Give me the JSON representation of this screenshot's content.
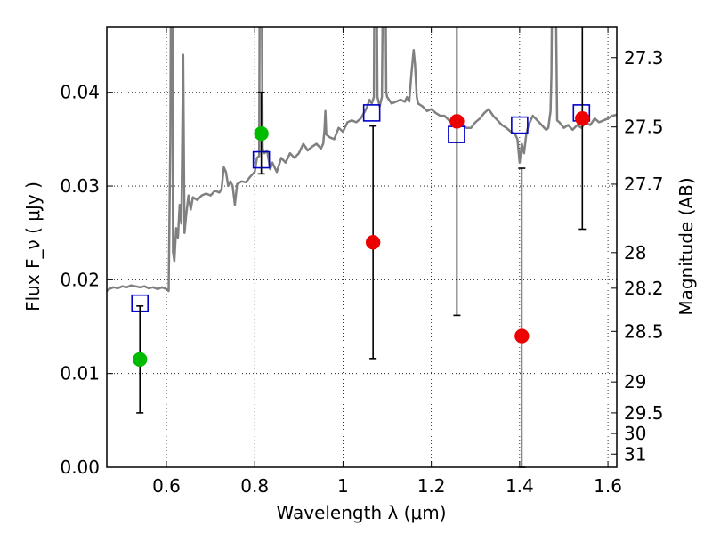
{
  "chart_data": {
    "type": "scatter",
    "xlabel": "Wavelength  λ (μm)",
    "ylabel": "Flux  F_ν  ( μJy )",
    "y2label": "Magnitude (AB)",
    "xlim": [
      0.465,
      1.62
    ],
    "ylim": [
      0.0,
      0.047
    ],
    "grid": true,
    "x_ticks": [
      0.6,
      0.8,
      1.0,
      1.2,
      1.4,
      1.6
    ],
    "x_tick_labels": [
      "0.6",
      "0.8",
      "1",
      "1.2",
      "1.4",
      "1.6"
    ],
    "y_ticks": [
      0.0,
      0.01,
      0.02,
      0.03,
      0.04
    ],
    "y_tick_labels": [
      "0.00",
      "0.01",
      "0.02",
      "0.03",
      "0.04"
    ],
    "y2_ticks": [
      {
        "label": "27.3",
        "flux": 0.0437
      },
      {
        "label": "27.5",
        "flux": 0.0363
      },
      {
        "label": "27.7",
        "flux": 0.0302
      },
      {
        "label": "28",
        "flux": 0.0229
      },
      {
        "label": "28.2",
        "flux": 0.0191
      },
      {
        "label": "28.5",
        "flux": 0.0145
      },
      {
        "label": "29",
        "flux": 0.0091
      },
      {
        "label": "29.5",
        "flux": 0.0058
      },
      {
        "label": "30",
        "flux": 0.0036
      },
      {
        "label": "31",
        "flux": 0.0014
      }
    ],
    "colors": {
      "spectrum": "#808080",
      "model_box": "#0000cc",
      "green_point": "#00bb00",
      "red_point": "#ee0000",
      "errorbar": "#000000"
    },
    "series": [
      {
        "name": "model-spectrum",
        "kind": "line",
        "points": [
          [
            0.465,
            0.0188
          ],
          [
            0.47,
            0.019
          ],
          [
            0.48,
            0.0192
          ],
          [
            0.49,
            0.0191
          ],
          [
            0.5,
            0.0193
          ],
          [
            0.51,
            0.0192
          ],
          [
            0.52,
            0.0194
          ],
          [
            0.53,
            0.0193
          ],
          [
            0.54,
            0.0192
          ],
          [
            0.55,
            0.0193
          ],
          [
            0.56,
            0.0191
          ],
          [
            0.57,
            0.0192
          ],
          [
            0.58,
            0.019
          ],
          [
            0.59,
            0.0192
          ],
          [
            0.6,
            0.019
          ],
          [
            0.605,
            0.0188
          ],
          [
            0.609,
            0.035
          ],
          [
            0.611,
            0.06
          ],
          [
            0.613,
            0.06
          ],
          [
            0.615,
            0.023
          ],
          [
            0.618,
            0.022
          ],
          [
            0.622,
            0.0255
          ],
          [
            0.626,
            0.0245
          ],
          [
            0.63,
            0.028
          ],
          [
            0.634,
            0.026
          ],
          [
            0.638,
            0.044
          ],
          [
            0.641,
            0.025
          ],
          [
            0.645,
            0.027
          ],
          [
            0.65,
            0.029
          ],
          [
            0.655,
            0.0275
          ],
          [
            0.66,
            0.0288
          ],
          [
            0.67,
            0.0285
          ],
          [
            0.68,
            0.029
          ],
          [
            0.69,
            0.0292
          ],
          [
            0.7,
            0.029
          ],
          [
            0.71,
            0.0295
          ],
          [
            0.72,
            0.0293
          ],
          [
            0.725,
            0.0297
          ],
          [
            0.73,
            0.032
          ],
          [
            0.735,
            0.0315
          ],
          [
            0.74,
            0.03
          ],
          [
            0.745,
            0.0305
          ],
          [
            0.75,
            0.03
          ],
          [
            0.755,
            0.028
          ],
          [
            0.76,
            0.0302
          ],
          [
            0.77,
            0.0305
          ],
          [
            0.78,
            0.0304
          ],
          [
            0.79,
            0.031
          ],
          [
            0.8,
            0.0315
          ],
          [
            0.805,
            0.033
          ],
          [
            0.81,
            0.0332
          ],
          [
            0.812,
            0.06
          ],
          [
            0.815,
            0.06
          ],
          [
            0.818,
            0.034
          ],
          [
            0.822,
            0.0335
          ],
          [
            0.828,
            0.0338
          ],
          [
            0.835,
            0.0318
          ],
          [
            0.84,
            0.0325
          ],
          [
            0.845,
            0.032
          ],
          [
            0.85,
            0.0315
          ],
          [
            0.86,
            0.033
          ],
          [
            0.87,
            0.0325
          ],
          [
            0.88,
            0.0335
          ],
          [
            0.89,
            0.033
          ],
          [
            0.9,
            0.0335
          ],
          [
            0.91,
            0.0345
          ],
          [
            0.92,
            0.0338
          ],
          [
            0.93,
            0.0342
          ],
          [
            0.94,
            0.0345
          ],
          [
            0.95,
            0.034
          ],
          [
            0.955,
            0.0345
          ],
          [
            0.958,
            0.036
          ],
          [
            0.96,
            0.038
          ],
          [
            0.962,
            0.0355
          ],
          [
            0.97,
            0.0352
          ],
          [
            0.98,
            0.035
          ],
          [
            0.99,
            0.0362
          ],
          [
            1.0,
            0.0358
          ],
          [
            1.01,
            0.0368
          ],
          [
            1.02,
            0.037
          ],
          [
            1.03,
            0.0368
          ],
          [
            1.04,
            0.0372
          ],
          [
            1.05,
            0.038
          ],
          [
            1.055,
            0.0385
          ],
          [
            1.06,
            0.0392
          ],
          [
            1.065,
            0.0388
          ],
          [
            1.07,
            0.0395
          ],
          [
            1.072,
            0.06
          ],
          [
            1.075,
            0.06
          ],
          [
            1.078,
            0.0395
          ],
          [
            1.083,
            0.0385
          ],
          [
            1.088,
            0.0395
          ],
          [
            1.092,
            0.06
          ],
          [
            1.095,
            0.06
          ],
          [
            1.098,
            0.04
          ],
          [
            1.1,
            0.0395
          ],
          [
            1.11,
            0.0388
          ],
          [
            1.12,
            0.039
          ],
          [
            1.13,
            0.0392
          ],
          [
            1.14,
            0.039
          ],
          [
            1.145,
            0.0395
          ],
          [
            1.15,
            0.039
          ],
          [
            1.155,
            0.042
          ],
          [
            1.16,
            0.0445
          ],
          [
            1.163,
            0.043
          ],
          [
            1.167,
            0.0395
          ],
          [
            1.17,
            0.0388
          ],
          [
            1.18,
            0.0385
          ],
          [
            1.19,
            0.038
          ],
          [
            1.2,
            0.0382
          ],
          [
            1.21,
            0.0378
          ],
          [
            1.22,
            0.0375
          ],
          [
            1.23,
            0.0375
          ],
          [
            1.24,
            0.037
          ],
          [
            1.25,
            0.0368
          ],
          [
            1.26,
            0.0365
          ],
          [
            1.27,
            0.0365
          ],
          [
            1.28,
            0.0362
          ],
          [
            1.29,
            0.0362
          ],
          [
            1.3,
            0.0368
          ],
          [
            1.31,
            0.0372
          ],
          [
            1.32,
            0.0378
          ],
          [
            1.33,
            0.0382
          ],
          [
            1.34,
            0.0375
          ],
          [
            1.35,
            0.037
          ],
          [
            1.36,
            0.0365
          ],
          [
            1.37,
            0.0362
          ],
          [
            1.38,
            0.0358
          ],
          [
            1.39,
            0.0355
          ],
          [
            1.395,
            0.035
          ],
          [
            1.4,
            0.0325
          ],
          [
            1.405,
            0.0345
          ],
          [
            1.41,
            0.0335
          ],
          [
            1.415,
            0.0355
          ],
          [
            1.42,
            0.0365
          ],
          [
            1.43,
            0.0375
          ],
          [
            1.44,
            0.037
          ],
          [
            1.45,
            0.0365
          ],
          [
            1.46,
            0.036
          ],
          [
            1.465,
            0.0362
          ],
          [
            1.47,
            0.038
          ],
          [
            1.472,
            0.042
          ],
          [
            1.475,
            0.06
          ],
          [
            1.48,
            0.06
          ],
          [
            1.485,
            0.037
          ],
          [
            1.49,
            0.0368
          ],
          [
            1.5,
            0.0362
          ],
          [
            1.51,
            0.0365
          ],
          [
            1.52,
            0.036
          ],
          [
            1.53,
            0.0365
          ],
          [
            1.54,
            0.0362
          ],
          [
            1.55,
            0.0368
          ],
          [
            1.56,
            0.0365
          ],
          [
            1.57,
            0.0372
          ],
          [
            1.58,
            0.0368
          ],
          [
            1.59,
            0.037
          ],
          [
            1.6,
            0.0372
          ],
          [
            1.61,
            0.0375
          ],
          [
            1.62,
            0.0376
          ]
        ]
      },
      {
        "name": "model-photometry",
        "kind": "box",
        "points": [
          [
            0.54,
            0.0175
          ],
          [
            0.815,
            0.0328
          ],
          [
            1.065,
            0.0378
          ],
          [
            1.257,
            0.0355
          ],
          [
            1.4,
            0.0365
          ],
          [
            1.54,
            0.0378
          ]
        ]
      },
      {
        "name": "observed-green",
        "kind": "point",
        "points": [
          {
            "x": 0.54,
            "y": 0.0115,
            "err_low": 0.0058,
            "err_high": 0.0172
          },
          {
            "x": 0.815,
            "y": 0.0356,
            "err_low": 0.0313,
            "err_high": 0.04
          }
        ]
      },
      {
        "name": "observed-red",
        "kind": "point",
        "points": [
          {
            "x": 1.068,
            "y": 0.024,
            "err_low": 0.0116,
            "err_high": 0.0364
          },
          {
            "x": 1.258,
            "y": 0.0369,
            "err_low": 0.0162,
            "err_high": 0.06
          },
          {
            "x": 1.405,
            "y": 0.014,
            "err_low": 0.0,
            "err_high": 0.0319
          },
          {
            "x": 1.542,
            "y": 0.0372,
            "err_low": 0.0254,
            "err_high": 0.06
          }
        ]
      }
    ]
  }
}
